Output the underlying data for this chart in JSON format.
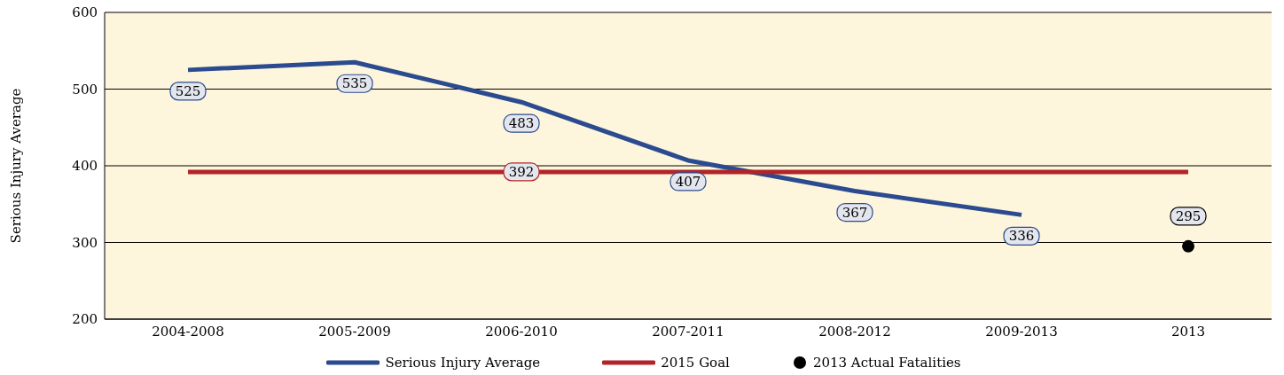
{
  "chart_data": {
    "type": "line",
    "ylabel": "Serious Injury Average",
    "categories": [
      "2004-2008",
      "2005-2009",
      "2006-2010",
      "2007-2011",
      "2008-2012",
      "2009-2013",
      "2013"
    ],
    "series": [
      {
        "name": "Serious Injury Average",
        "color": "#2b4a8f",
        "values": [
          525,
          535,
          483,
          407,
          367,
          336,
          null
        ],
        "value_labels": [
          "525",
          "535",
          "483",
          "407",
          "367",
          "336",
          null
        ]
      },
      {
        "name": "2015 Goal",
        "color": "#b22428",
        "values": [
          392,
          392,
          392,
          392,
          392,
          392,
          392
        ],
        "value_labels": [
          null,
          null,
          "392",
          null,
          null,
          null,
          null
        ]
      },
      {
        "name": "2013 Actual Fatalities",
        "type": "scatter",
        "color": "#000000",
        "marker": "circle",
        "values": [
          null,
          null,
          null,
          null,
          null,
          null,
          295
        ],
        "value_labels": [
          null,
          null,
          null,
          null,
          null,
          null,
          "295"
        ]
      }
    ],
    "ylim": [
      200,
      600
    ],
    "yticks": [
      200,
      300,
      400,
      500,
      600
    ],
    "grid": "y",
    "legend": "bottom"
  }
}
